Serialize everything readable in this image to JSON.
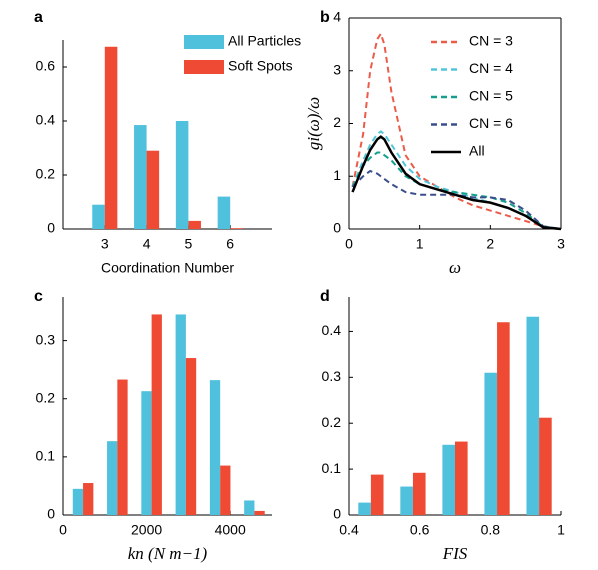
{
  "chart_data": [
    {
      "type": "bar",
      "label": "a",
      "xlabel": "Coordination Number",
      "x": [
        3,
        4,
        5,
        6
      ],
      "xlim": [
        2,
        7
      ],
      "xticks": [
        3,
        4,
        5,
        6
      ],
      "ylim": [
        0,
        0.7
      ],
      "yticks": [
        0,
        0.2,
        0.4,
        0.6
      ],
      "legend": "upper right",
      "box": false,
      "series": [
        {
          "name": "All Particles",
          "color": "#4fc1dd",
          "values": [
            0.09,
            0.385,
            0.4,
            0.12
          ]
        },
        {
          "name": "Soft Spots",
          "color": "#ef4a34",
          "values": [
            0.675,
            0.29,
            0.03,
            0.003
          ]
        }
      ]
    },
    {
      "type": "line",
      "label": "b",
      "xlabel": "ω",
      "ylabel": "gi(ω)/ω",
      "x": [
        0.05,
        0.2,
        0.3,
        0.4,
        0.45,
        0.5,
        0.6,
        0.8,
        1.0,
        1.25,
        1.5,
        1.75,
        2.0,
        2.25,
        2.5,
        2.75,
        3.0
      ],
      "xlim": [
        0,
        3
      ],
      "xticks": [
        0,
        1,
        2,
        3
      ],
      "ylim": [
        0,
        4
      ],
      "yticks": [
        0,
        1,
        2,
        3,
        4
      ],
      "legend": "upper right",
      "box": true,
      "series": [
        {
          "name": "CN = 3",
          "color": "#ec5a48",
          "dash": true,
          "values": [
            0.8,
            1.8,
            3.0,
            3.6,
            3.7,
            3.5,
            2.6,
            1.4,
            1.0,
            0.8,
            0.6,
            0.45,
            0.35,
            0.25,
            0.15,
            0.05,
            0
          ]
        },
        {
          "name": "CN = 4",
          "color": "#52c6d8",
          "dash": true,
          "values": [
            0.8,
            1.3,
            1.6,
            1.8,
            1.85,
            1.8,
            1.6,
            1.2,
            0.95,
            0.8,
            0.7,
            0.6,
            0.5,
            0.4,
            0.25,
            0.05,
            0
          ]
        },
        {
          "name": "CN = 5",
          "color": "#14a08c",
          "dash": true,
          "values": [
            0.8,
            1.2,
            1.35,
            1.45,
            1.45,
            1.4,
            1.3,
            1.0,
            0.85,
            0.75,
            0.7,
            0.65,
            0.6,
            0.5,
            0.3,
            0.05,
            0
          ]
        },
        {
          "name": "CN = 6",
          "color": "#3a4e8b",
          "dash": true,
          "values": [
            0.8,
            1.0,
            1.1,
            1.05,
            1.0,
            0.95,
            0.85,
            0.7,
            0.65,
            0.65,
            0.65,
            0.6,
            0.6,
            0.55,
            0.35,
            0.05,
            0
          ]
        },
        {
          "name": "All",
          "color": "#000000",
          "dash": false,
          "values": [
            0.7,
            1.2,
            1.5,
            1.7,
            1.75,
            1.7,
            1.45,
            1.05,
            0.85,
            0.75,
            0.65,
            0.55,
            0.5,
            0.4,
            0.25,
            0.03,
            0
          ]
        }
      ]
    },
    {
      "type": "bar",
      "label": "c",
      "xlabel": "kn (N m−1)",
      "x": [
        480,
        1300,
        2120,
        2940,
        3760,
        4580
      ],
      "xlim": [
        0,
        5000
      ],
      "xticks": [
        0,
        2000,
        4000
      ],
      "ylim": [
        0,
        0.375
      ],
      "yticks": [
        0,
        0.1,
        0.2,
        0.3
      ],
      "box": false,
      "series": [
        {
          "name": "All Particles",
          "color": "#4fc1dd",
          "values": [
            0.045,
            0.127,
            0.213,
            0.345,
            0.232,
            0.025
          ]
        },
        {
          "name": "Soft Spots",
          "color": "#ef4a34",
          "values": [
            0.055,
            0.233,
            0.345,
            0.27,
            0.085,
            0.007
          ]
        }
      ]
    },
    {
      "type": "bar",
      "label": "d",
      "xlabel": "FIS",
      "x": [
        0.462,
        0.581,
        0.7,
        0.819,
        0.938
      ],
      "xlim": [
        0.4,
        1
      ],
      "xticks": [
        0.4,
        0.6,
        0.8,
        1
      ],
      "ylim": [
        0,
        0.475
      ],
      "yticks": [
        0,
        0.1,
        0.2,
        0.3,
        0.4
      ],
      "box": false,
      "series": [
        {
          "name": "All Particles",
          "color": "#4fc1dd",
          "values": [
            0.027,
            0.062,
            0.153,
            0.31,
            0.432
          ]
        },
        {
          "name": "Soft Spots",
          "color": "#ef4a34",
          "values": [
            0.088,
            0.092,
            0.16,
            0.42,
            0.212
          ]
        }
      ]
    }
  ]
}
